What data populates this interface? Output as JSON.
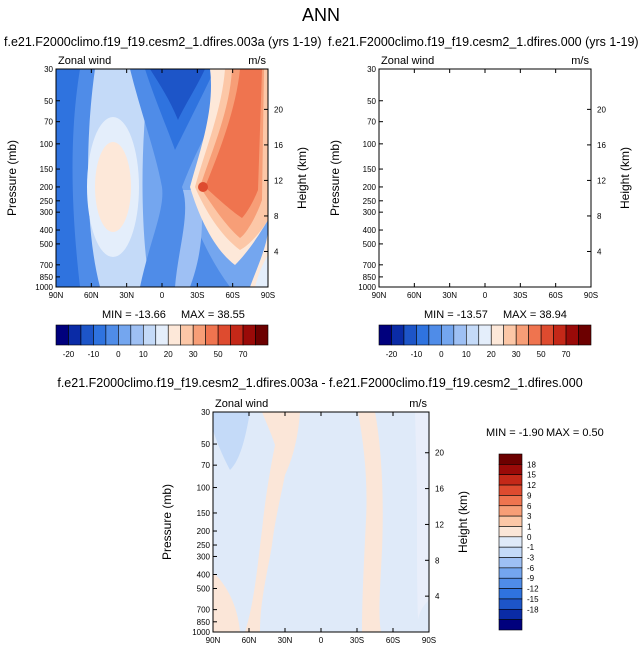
{
  "figure": {
    "title": "ANN"
  },
  "colors": {
    "main_scale": [
      "#00007d",
      "#0a2ba6",
      "#1d55c8",
      "#2f73df",
      "#4f8ce8",
      "#74a6ef",
      "#9ec0f4",
      "#c4daf8",
      "#e4eefb",
      "#fde8d9",
      "#fcc7a7",
      "#f79e77",
      "#ef744f",
      "#de4b2f",
      "#c42818",
      "#9a0a08",
      "#6c0000"
    ],
    "diff_scale": [
      "#00007d",
      "#0a2ba6",
      "#1d55c8",
      "#2f73df",
      "#4f8ce8",
      "#74a6ef",
      "#9ec0f4",
      "#c4daf8",
      "#dfeaf9",
      "#fbe6d8",
      "#fcc7a7",
      "#f79e77",
      "#ef744f",
      "#de4b2f",
      "#c42818",
      "#9a0a08",
      "#6c0000"
    ]
  },
  "chart_data": [
    {
      "type": "heatmap",
      "title": "f.e21.F2000climo.f19_f19.cesm2_1.dfires.003a (yrs 1-19)",
      "left_label": "Zonal wind",
      "right_label": "m/s",
      "ylabel": "Pressure (mb)",
      "ylabel_right": "Height (km)",
      "x_ticks": [
        "90N",
        "60N",
        "30N",
        "0",
        "30S",
        "60S",
        "90S"
      ],
      "y_ticks": [
        "30",
        "50",
        "70",
        "100",
        "150",
        "200",
        "250",
        "300",
        "400",
        "500",
        "700",
        "850",
        "1000"
      ],
      "y_right_ticks": [
        "20",
        "16",
        "12",
        "8",
        "4"
      ],
      "min_text": "MIN = -13.66",
      "max_text": "MAX =  38.55",
      "min": -13.66,
      "max": 38.55,
      "colorbar_labels": [
        "-20",
        "-10",
        "0",
        "10",
        "20",
        "30",
        "50",
        "70"
      ]
    },
    {
      "type": "heatmap",
      "title": "f.e21.F2000climo.f19_f19.cesm2_1.dfires.000 (yrs 1-19)",
      "left_label": "Zonal wind",
      "right_label": "m/s",
      "ylabel": "Pressure (mb)",
      "ylabel_right": "Height (km)",
      "x_ticks": [
        "90N",
        "60N",
        "30N",
        "0",
        "30S",
        "60S",
        "90S"
      ],
      "y_ticks": [
        "30",
        "50",
        "70",
        "100",
        "150",
        "200",
        "250",
        "300",
        "400",
        "500",
        "700",
        "850",
        "1000"
      ],
      "y_right_ticks": [
        "20",
        "16",
        "12",
        "8",
        "4"
      ],
      "min_text": "MIN = -13.57",
      "max_text": "MAX =  38.94",
      "min": -13.57,
      "max": 38.94,
      "colorbar_labels": [
        "-20",
        "-10",
        "0",
        "10",
        "20",
        "30",
        "50",
        "70"
      ]
    },
    {
      "type": "heatmap",
      "title": "f.e21.F2000climo.f19_f19.cesm2_1.dfires.003a - f.e21.F2000climo.f19_f19.cesm2_1.dfires.000",
      "left_label": "Zonal wind",
      "right_label": "m/s",
      "ylabel": "Pressure (mb)",
      "ylabel_right": "Height (km)",
      "x_ticks": [
        "90N",
        "60N",
        "30N",
        "0",
        "30S",
        "60S",
        "90S"
      ],
      "y_ticks": [
        "30",
        "50",
        "70",
        "100",
        "150",
        "200",
        "250",
        "300",
        "400",
        "500",
        "700",
        "850",
        "1000"
      ],
      "y_right_ticks": [
        "20",
        "16",
        "12",
        "8",
        "4"
      ],
      "min_text": "MIN = -1.90",
      "max_text": "MAX =  0.50",
      "min": -1.9,
      "max": 0.5,
      "colorbar_labels": [
        "18",
        "15",
        "12",
        "9",
        "6",
        "3",
        "1",
        "0",
        "-1",
        "-3",
        "-6",
        "-9",
        "-12",
        "-15",
        "-18"
      ]
    }
  ]
}
